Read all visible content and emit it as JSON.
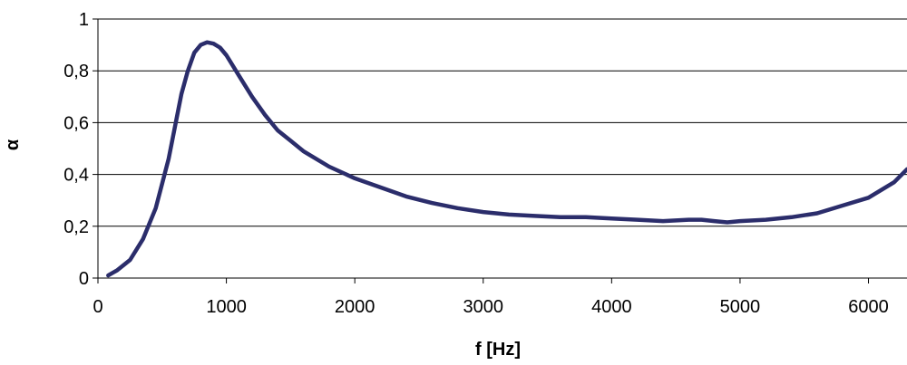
{
  "chart_data": {
    "type": "line",
    "title": "",
    "xlabel": "f [Hz]",
    "ylabel": "α",
    "xlim": [
      0,
      6300
    ],
    "ylim": [
      0,
      1
    ],
    "x_ticks": [
      0,
      1000,
      2000,
      3000,
      4000,
      5000,
      6000
    ],
    "x_tick_labels": [
      "0",
      "1000",
      "2000",
      "3000",
      "4000",
      "5000",
      "6000"
    ],
    "y_ticks": [
      0,
      0.2,
      0.4,
      0.6,
      0.8,
      1
    ],
    "y_tick_labels": [
      "0",
      "0,2",
      "0,4",
      "0,6",
      "0,8",
      "1"
    ],
    "grid": "horizontal",
    "legend": "none",
    "line_color": "#2b2d6b",
    "series": [
      {
        "x": [
          80,
          150,
          250,
          350,
          450,
          550,
          650,
          700,
          750,
          800,
          850,
          900,
          950,
          1000,
          1100,
          1200,
          1300,
          1400,
          1500,
          1600,
          1800,
          2000,
          2200,
          2400,
          2600,
          2800,
          3000,
          3200,
          3400,
          3600,
          3800,
          4000,
          4200,
          4400,
          4600,
          4700,
          4800,
          4900,
          5000,
          5200,
          5400,
          5600,
          5800,
          6000,
          6200,
          6300
        ],
        "y": [
          0.01,
          0.03,
          0.07,
          0.15,
          0.27,
          0.46,
          0.71,
          0.8,
          0.87,
          0.9,
          0.91,
          0.905,
          0.89,
          0.86,
          0.78,
          0.7,
          0.63,
          0.57,
          0.53,
          0.49,
          0.43,
          0.385,
          0.35,
          0.315,
          0.29,
          0.27,
          0.255,
          0.245,
          0.24,
          0.235,
          0.235,
          0.23,
          0.225,
          0.22,
          0.225,
          0.225,
          0.22,
          0.215,
          0.22,
          0.225,
          0.235,
          0.25,
          0.28,
          0.31,
          0.37,
          0.42
        ]
      }
    ]
  }
}
